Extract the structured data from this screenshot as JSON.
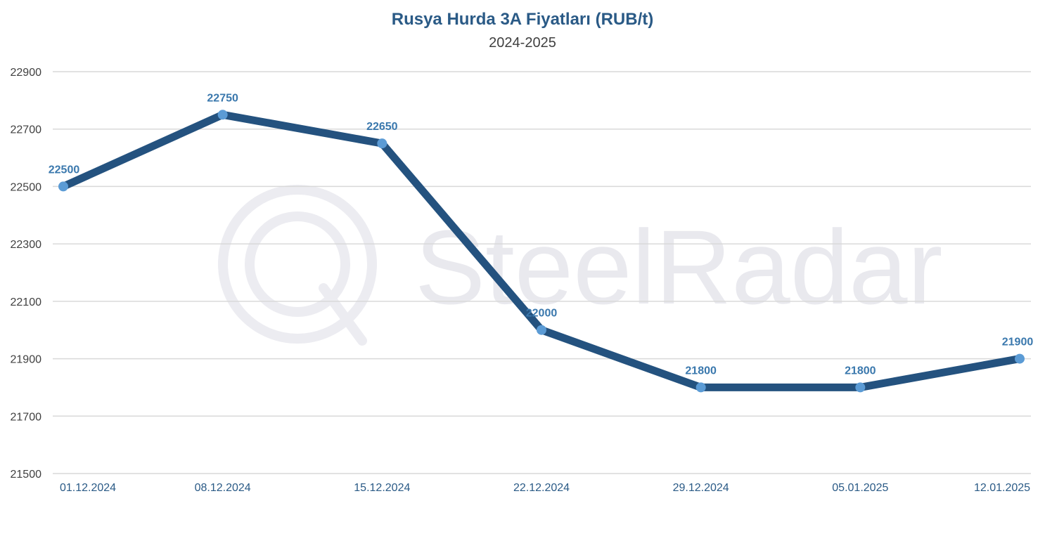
{
  "chart_data": {
    "type": "line",
    "title": "Rusya Hurda 3A Fiyatları (RUB/t)",
    "subtitle": "2024-2025",
    "watermark": "SteelRadar",
    "categories": [
      "01.12.2024",
      "08.12.2024",
      "15.12.2024",
      "22.12.2024",
      "29.12.2024",
      "05.01.2025",
      "12.01.2025"
    ],
    "series": [
      {
        "values": [
          22500,
          22750,
          22650,
          22000,
          21800,
          21800,
          21900
        ]
      }
    ],
    "data_labels": [
      "22500",
      "22750",
      "22650",
      "22000",
      "21800",
      "21800",
      "21900"
    ],
    "yticks": [
      "21500",
      "21700",
      "21900",
      "22100",
      "22300",
      "22500",
      "22700",
      "22900"
    ],
    "ylim": [
      21500,
      22900
    ],
    "grid": true,
    "legend": false,
    "colors": {
      "line": "#24527f",
      "marker": "#5b9bd5",
      "label": "#3a78ad",
      "grid": "#d9d9d9"
    }
  }
}
